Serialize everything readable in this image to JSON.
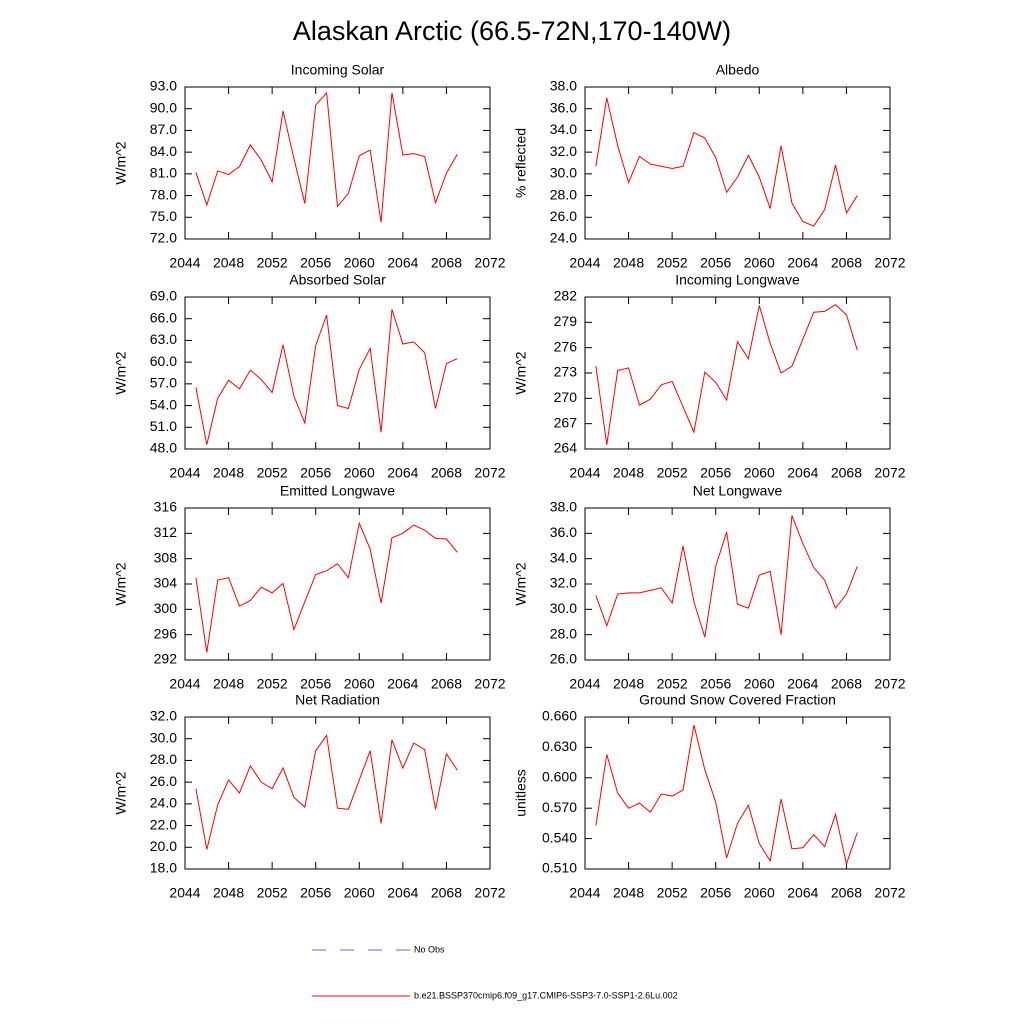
{
  "title": "Alaskan Arctic (66.5-72N,170-140W)",
  "legend": [
    {
      "name": "No Obs",
      "color": "#6a6acd",
      "dash": true
    },
    {
      "name": "b.e21.BSSP370cmip6.f09_g17.CMIP6-SSP3-7.0-SSP1-2.6Lu.002",
      "color": "#ff0000",
      "dash": false
    }
  ],
  "chart_data": [
    {
      "type": "line",
      "title": "Incoming Solar",
      "ylabel": "W/m^2",
      "color": "#ff0000",
      "x": [
        2045,
        2046,
        2047,
        2048,
        2049,
        2050,
        2051,
        2052,
        2053,
        2054,
        2055,
        2056,
        2057,
        2058,
        2059,
        2060,
        2061,
        2062,
        2063,
        2064,
        2065,
        2066,
        2067,
        2068,
        2069
      ],
      "values": [
        81.2,
        76.7,
        81.4,
        80.9,
        82.0,
        85.0,
        82.9,
        79.9,
        89.7,
        83.1,
        76.9,
        90.5,
        92.2,
        76.5,
        78.3,
        83.5,
        84.3,
        74.3,
        92.2,
        83.6,
        83.8,
        83.4,
        77.0,
        81.1,
        83.7
      ],
      "xlim": [
        2044,
        2072
      ],
      "xticks": [
        2044,
        2048,
        2052,
        2056,
        2060,
        2064,
        2068,
        2072
      ],
      "ylim": [
        72,
        93
      ],
      "yticks": [
        {
          "value": 72,
          "label": "72.0"
        },
        {
          "value": 75,
          "label": "75.0"
        },
        {
          "value": 78,
          "label": "78.0"
        },
        {
          "value": 81,
          "label": "81.0"
        },
        {
          "value": 84,
          "label": "84.0"
        },
        {
          "value": 87,
          "label": "87.0"
        },
        {
          "value": 90,
          "label": "90.0"
        },
        {
          "value": 93,
          "label": "93.0"
        }
      ]
    },
    {
      "type": "line",
      "title": "Albedo",
      "ylabel": "% reflected",
      "color": "#ff0000",
      "x": [
        2045,
        2046,
        2047,
        2048,
        2049,
        2050,
        2051,
        2052,
        2053,
        2054,
        2055,
        2056,
        2057,
        2058,
        2059,
        2060,
        2061,
        2062,
        2063,
        2064,
        2065,
        2066,
        2067,
        2068,
        2069
      ],
      "values": [
        30.7,
        37.0,
        32.6,
        29.2,
        31.6,
        30.9,
        30.7,
        30.5,
        30.7,
        33.8,
        33.3,
        31.5,
        28.3,
        29.7,
        31.7,
        29.7,
        26.8,
        32.6,
        27.3,
        25.6,
        25.2,
        26.7,
        30.8,
        26.4,
        28.0
      ],
      "xlim": [
        2044,
        2072
      ],
      "xticks": [
        2044,
        2048,
        2052,
        2056,
        2060,
        2064,
        2068,
        2072
      ],
      "ylim": [
        24,
        38
      ],
      "yticks": [
        {
          "value": 24,
          "label": "24.0"
        },
        {
          "value": 26,
          "label": "26.0"
        },
        {
          "value": 28,
          "label": "28.0"
        },
        {
          "value": 30,
          "label": "30.0"
        },
        {
          "value": 32,
          "label": "32.0"
        },
        {
          "value": 34,
          "label": "34.0"
        },
        {
          "value": 36,
          "label": "36.0"
        },
        {
          "value": 38,
          "label": "38.0"
        }
      ]
    },
    {
      "type": "line",
      "title": "Absorbed Solar",
      "ylabel": "W/m^2",
      "color": "#ff0000",
      "x": [
        2045,
        2046,
        2047,
        2048,
        2049,
        2050,
        2051,
        2052,
        2053,
        2054,
        2055,
        2056,
        2057,
        2058,
        2059,
        2060,
        2061,
        2062,
        2063,
        2064,
        2065,
        2066,
        2067,
        2068,
        2069
      ],
      "values": [
        56.5,
        48.6,
        55.0,
        57.5,
        56.3,
        58.9,
        57.6,
        55.8,
        62.4,
        55.3,
        51.6,
        62.3,
        66.5,
        54.0,
        53.6,
        59.0,
        61.9,
        50.3,
        67.3,
        62.5,
        62.8,
        61.3,
        53.6,
        59.8,
        60.5
      ],
      "xlim": [
        2044,
        2072
      ],
      "xticks": [
        2044,
        2048,
        2052,
        2056,
        2060,
        2064,
        2068,
        2072
      ],
      "ylim": [
        48,
        69
      ],
      "yticks": [
        {
          "value": 48,
          "label": "48.0"
        },
        {
          "value": 51,
          "label": "51.0"
        },
        {
          "value": 54,
          "label": "54.0"
        },
        {
          "value": 57,
          "label": "57.0"
        },
        {
          "value": 60,
          "label": "60.0"
        },
        {
          "value": 63,
          "label": "63.0"
        },
        {
          "value": 66,
          "label": "66.0"
        },
        {
          "value": 69,
          "label": "69.0"
        }
      ]
    },
    {
      "type": "line",
      "title": "Incoming Longwave",
      "ylabel": "W/m^2",
      "color": "#ff0000",
      "x": [
        2045,
        2046,
        2047,
        2048,
        2049,
        2050,
        2051,
        2052,
        2053,
        2054,
        2055,
        2056,
        2057,
        2058,
        2059,
        2060,
        2061,
        2062,
        2063,
        2064,
        2065,
        2066,
        2067,
        2068,
        2069
      ],
      "values": [
        273.8,
        264.5,
        273.3,
        273.6,
        269.2,
        269.9,
        271.6,
        272.0,
        269.0,
        266.0,
        273.1,
        271.9,
        269.8,
        276.7,
        274.7,
        281.0,
        276.5,
        273.0,
        273.8,
        277.0,
        280.2,
        280.3,
        281.1,
        279.9,
        275.7
      ],
      "xlim": [
        2044,
        2072
      ],
      "xticks": [
        2044,
        2048,
        2052,
        2056,
        2060,
        2064,
        2068,
        2072
      ],
      "ylim": [
        264,
        282
      ],
      "yticks": [
        264,
        267,
        270,
        273,
        276,
        279,
        282
      ]
    },
    {
      "type": "line",
      "title": "Emitted Longwave",
      "ylabel": "W/m^2",
      "color": "#ff0000",
      "x": [
        2045,
        2046,
        2047,
        2048,
        2049,
        2050,
        2051,
        2052,
        2053,
        2054,
        2055,
        2056,
        2057,
        2058,
        2059,
        2060,
        2061,
        2062,
        2063,
        2064,
        2065,
        2066,
        2067,
        2068,
        2069
      ],
      "values": [
        305.0,
        293.2,
        304.6,
        305.0,
        300.5,
        301.4,
        303.5,
        302.6,
        304.1,
        296.8,
        301.2,
        305.5,
        306.1,
        307.2,
        305.0,
        313.6,
        309.5,
        301.0,
        311.3,
        312.0,
        313.3,
        312.5,
        311.2,
        311.1,
        309.0
      ],
      "xlim": [
        2044,
        2072
      ],
      "xticks": [
        2044,
        2048,
        2052,
        2056,
        2060,
        2064,
        2068,
        2072
      ],
      "ylim": [
        292,
        316
      ],
      "yticks": [
        292,
        296,
        300,
        304,
        308,
        312,
        316
      ]
    },
    {
      "type": "line",
      "title": "Net Longwave",
      "ylabel": "W/m^2",
      "color": "#ff0000",
      "x": [
        2045,
        2046,
        2047,
        2048,
        2049,
        2050,
        2051,
        2052,
        2053,
        2054,
        2055,
        2056,
        2057,
        2058,
        2059,
        2060,
        2061,
        2062,
        2063,
        2064,
        2065,
        2066,
        2067,
        2068,
        2069
      ],
      "values": [
        31.1,
        28.7,
        31.2,
        31.3,
        31.3,
        31.5,
        31.7,
        30.5,
        35.0,
        30.6,
        27.8,
        33.4,
        36.1,
        30.4,
        30.1,
        32.7,
        33.0,
        28.0,
        37.4,
        35.2,
        33.3,
        32.3,
        30.1,
        31.2,
        33.4
      ],
      "xlim": [
        2044,
        2072
      ],
      "xticks": [
        2044,
        2048,
        2052,
        2056,
        2060,
        2064,
        2068,
        2072
      ],
      "ylim": [
        26,
        38
      ],
      "yticks": [
        {
          "value": 26,
          "label": "26.0"
        },
        {
          "value": 28,
          "label": "28.0"
        },
        {
          "value": 30,
          "label": "30.0"
        },
        {
          "value": 32,
          "label": "32.0"
        },
        {
          "value": 34,
          "label": "34.0"
        },
        {
          "value": 36,
          "label": "36.0"
        },
        {
          "value": 38,
          "label": "38.0"
        }
      ]
    },
    {
      "type": "line",
      "title": "Net Radiation",
      "ylabel": "W/m^2",
      "color": "#ff0000",
      "x": [
        2045,
        2046,
        2047,
        2048,
        2049,
        2050,
        2051,
        2052,
        2053,
        2054,
        2055,
        2056,
        2057,
        2058,
        2059,
        2060,
        2061,
        2062,
        2063,
        2064,
        2065,
        2066,
        2067,
        2068,
        2069
      ],
      "values": [
        25.4,
        19.8,
        23.9,
        26.2,
        25.0,
        27.5,
        26.0,
        25.4,
        27.3,
        24.6,
        23.7,
        28.9,
        30.3,
        23.6,
        23.5,
        26.2,
        28.9,
        22.2,
        29.9,
        27.3,
        29.6,
        29.0,
        23.5,
        28.6,
        27.1
      ],
      "xlim": [
        2044,
        2072
      ],
      "xticks": [
        2044,
        2048,
        2052,
        2056,
        2060,
        2064,
        2068,
        2072
      ],
      "ylim": [
        18,
        32
      ],
      "yticks": [
        {
          "value": 18,
          "label": "18.0"
        },
        {
          "value": 20,
          "label": "20.0"
        },
        {
          "value": 22,
          "label": "22.0"
        },
        {
          "value": 24,
          "label": "24.0"
        },
        {
          "value": 26,
          "label": "26.0"
        },
        {
          "value": 28,
          "label": "28.0"
        },
        {
          "value": 30,
          "label": "30.0"
        },
        {
          "value": 32,
          "label": "32.0"
        }
      ]
    },
    {
      "type": "line",
      "title": "Ground Snow Covered Fraction",
      "ylabel": "unitless",
      "color": "#ff0000",
      "x": [
        2045,
        2046,
        2047,
        2048,
        2049,
        2050,
        2051,
        2052,
        2053,
        2054,
        2055,
        2056,
        2057,
        2058,
        2059,
        2060,
        2061,
        2062,
        2063,
        2064,
        2065,
        2066,
        2067,
        2068,
        2069
      ],
      "values": [
        0.553,
        0.623,
        0.585,
        0.57,
        0.575,
        0.566,
        0.584,
        0.582,
        0.588,
        0.652,
        0.608,
        0.576,
        0.521,
        0.555,
        0.573,
        0.535,
        0.518,
        0.579,
        0.53,
        0.531,
        0.544,
        0.532,
        0.564,
        0.515,
        0.546
      ],
      "xlim": [
        2044,
        2072
      ],
      "xticks": [
        2044,
        2048,
        2052,
        2056,
        2060,
        2064,
        2068,
        2072
      ],
      "ylim": [
        0.51,
        0.66
      ],
      "yticks": [
        {
          "value": 0.51,
          "label": "0.510"
        },
        {
          "value": 0.54,
          "label": "0.540"
        },
        {
          "value": 0.57,
          "label": "0.570"
        },
        {
          "value": 0.6,
          "label": "0.600"
        },
        {
          "value": 0.63,
          "label": "0.630"
        },
        {
          "value": 0.66,
          "label": "0.660"
        }
      ]
    }
  ]
}
